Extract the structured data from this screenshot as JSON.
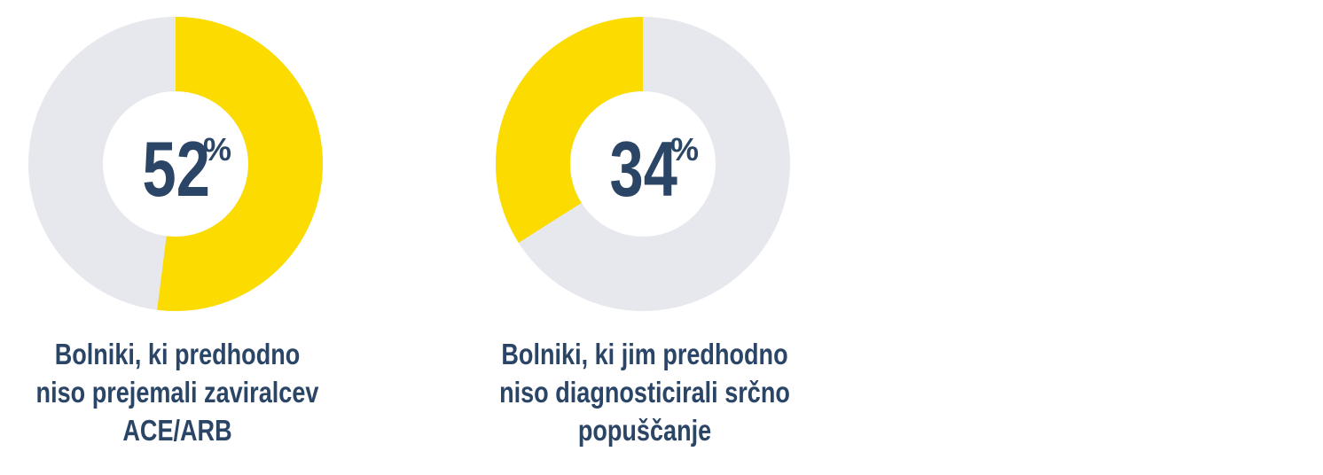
{
  "chart_data": [
    {
      "type": "pie",
      "value_percent": 52,
      "label": "52",
      "unit": "%",
      "caption_lines": [
        "Bolniki, ki predhodno",
        "niso prejemali zaviralcev",
        "ACE/ARB"
      ],
      "colors": {
        "highlight": "#fbdb00",
        "remainder": "#e6e8ee",
        "text": "#2b4566"
      }
    },
    {
      "type": "pie",
      "value_percent": 34,
      "label": "34",
      "unit": "%",
      "caption_lines": [
        "Bolniki, ki jim predhodno",
        "niso diagnosticirali srčno",
        "popuščanje"
      ],
      "colors": {
        "highlight": "#fbdb00",
        "remainder": "#e6e8ee",
        "text": "#2b4566"
      }
    }
  ]
}
